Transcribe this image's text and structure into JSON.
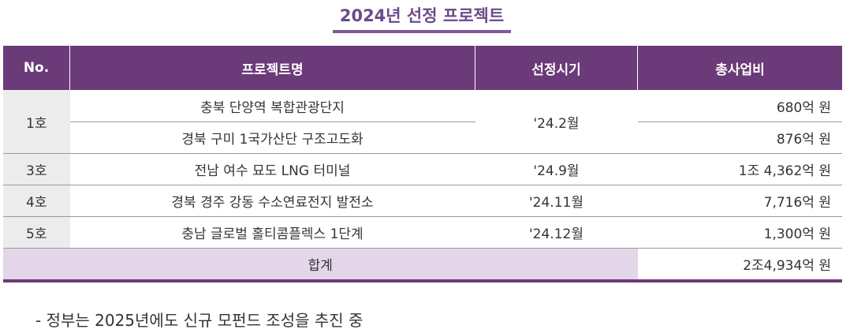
{
  "title": "2024년 선정 프로젝트",
  "headers": [
    "No.",
    "프로젝트명",
    "선정시기",
    "총사업비"
  ],
  "rows": [
    {
      "no": "1호",
      "projects": [
        {
          "name": "충북 단양역 복합관광단지",
          "amount": "680억 원"
        },
        {
          "name": "경북 구미 1국가산단 구조고도화",
          "amount": "876억 원"
        }
      ],
      "date": "'24.2월"
    },
    {
      "no": "3호",
      "projects": [
        {
          "name": "전남 여수 묘도 LNG 터미널",
          "amount": "1조 4,362억 원"
        }
      ],
      "date": "'24.9월"
    },
    {
      "no": "4호",
      "projects": [
        {
          "name": "경북 경주 강동 수소연료전지 발전소",
          "amount": "7,716억 원"
        }
      ],
      "date": "'24.11월"
    },
    {
      "no": "5호",
      "projects": [
        {
          "name": "충남 글로벌 홀티콤플렉스 1단계",
          "amount": "1,300억 원"
        }
      ],
      "date": "'24.12월"
    }
  ],
  "total": {
    "label": "합계",
    "amount": "2조4,934억 원"
  },
  "note": "- 정부는 2025년에도 신규 모펀드 조성을 추진 중",
  "colors": {
    "header": "#6b3a78",
    "title": "#6b4a8a",
    "total_bg": "#e3d6e8",
    "no_bg": "#ececec"
  }
}
